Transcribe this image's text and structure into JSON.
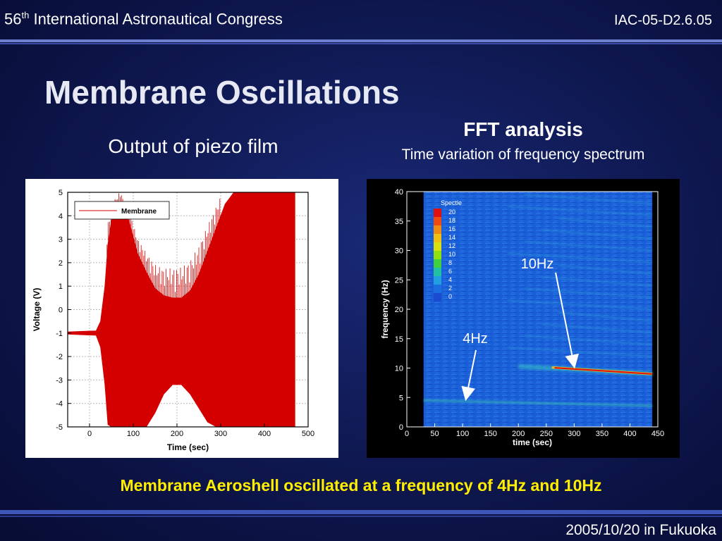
{
  "header": {
    "congress_number": "56",
    "congress_suffix": "th",
    "congress_name": "International Astronautical Congress",
    "paper_id": "IAC-05-D2.6.05"
  },
  "slide": {
    "title": "Membrane Oscillations",
    "left_subtitle": "Output of piezo film",
    "right_title": "FFT analysis",
    "right_subtitle": "Time variation of frequency spectrum",
    "caption": "Membrane Aeroshell oscillated at a frequency of 4Hz and 10Hz"
  },
  "footer": {
    "date_location": "2005/10/20 in Fukuoka"
  },
  "colors": {
    "signal": "#d40000",
    "caption": "#ffee00",
    "spectrum_bg": "#1a5fd8"
  },
  "chart_data": [
    {
      "type": "line",
      "xlabel": "Time (sec)",
      "ylabel": "Voltage (V)",
      "xlim": [
        -50,
        500
      ],
      "ylim": [
        -5,
        5
      ],
      "x_ticks": [
        0,
        100,
        200,
        300,
        400,
        500
      ],
      "y_ticks": [
        -5,
        -4,
        -3,
        -2,
        -1,
        0,
        1,
        2,
        3,
        4,
        5
      ],
      "grid": true,
      "legend": "top-left",
      "series": [
        {
          "name": "Membrane",
          "envelope": {
            "x": [
              -50,
              15,
              25,
              35,
              42,
              50,
              70,
              90,
              110,
              130,
              150,
              170,
              190,
              210,
              230,
              250,
              270,
              290,
              310,
              330,
              350,
              370,
              390,
              410,
              430,
              450,
              470
            ],
            "upper": [
              -0.95,
              -0.9,
              -0.5,
              1.0,
              2.8,
              3.8,
              4.5,
              3.8,
              2.4,
              1.6,
              0.9,
              0.6,
              0.5,
              0.5,
              0.8,
              1.5,
              2.5,
              3.5,
              4.5,
              5,
              5,
              5,
              5,
              5,
              5,
              5,
              5
            ],
            "lower": [
              -1.05,
              -1.1,
              -1.6,
              -3.2,
              -4.9,
              -5,
              -5,
              -5,
              -5,
              -5,
              -4.4,
              -3.6,
              -3.2,
              -3.2,
              -3.6,
              -4.2,
              -4.8,
              -5,
              -5,
              -5,
              -5,
              -5,
              -5,
              -5,
              -5,
              -5,
              -5
            ]
          }
        }
      ]
    },
    {
      "type": "heatmap",
      "xlabel": "time (sec)",
      "ylabel": "frequency (Hz)",
      "xlim": [
        0,
        450
      ],
      "ylim": [
        0,
        40
      ],
      "x_ticks": [
        0,
        50,
        100,
        150,
        200,
        250,
        300,
        350,
        400,
        450
      ],
      "y_ticks": [
        0,
        5,
        10,
        15,
        20,
        25,
        30,
        35,
        40
      ],
      "colorbar": {
        "title": "Spectle",
        "levels": [
          20,
          18,
          16,
          14,
          12,
          10,
          8,
          6,
          4,
          2,
          0
        ],
        "colors": [
          "#e01010",
          "#f04a10",
          "#f08a10",
          "#f0c010",
          "#d8e010",
          "#90e010",
          "#40d040",
          "#20c0a0",
          "#20a0e0",
          "#1a6ee0",
          "#1a4ad0"
        ]
      },
      "annotations": [
        {
          "text": "10Hz",
          "target_time": 300,
          "target_freq": 10
        },
        {
          "text": "4Hz",
          "target_time": 110,
          "target_freq": 4.5
        }
      ],
      "bands": [
        {
          "freq_start": 10.3,
          "freq_end": 9.0,
          "time_start": 200,
          "time_end": 440,
          "intensity": "high"
        },
        {
          "freq_start": 4.5,
          "freq_end": 3.6,
          "time_start": 30,
          "time_end": 440,
          "intensity": "low"
        }
      ]
    }
  ]
}
